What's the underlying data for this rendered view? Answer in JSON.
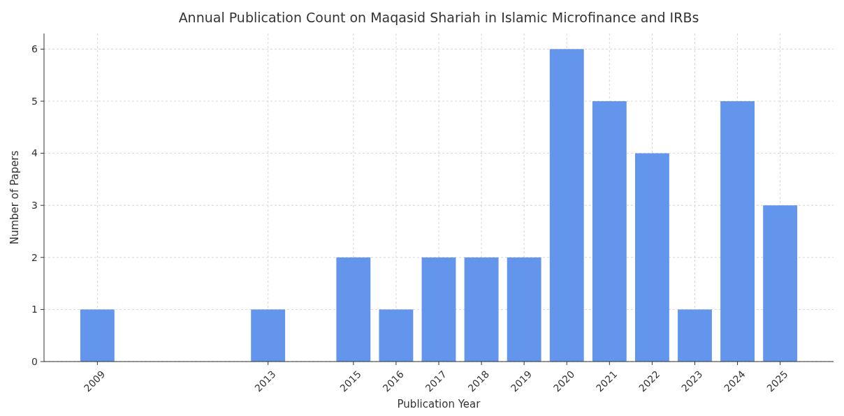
{
  "chart_data": {
    "type": "bar",
    "title": "Annual Publication Count on Maqasid Shariah in Islamic Microfinance and IRBs",
    "xlabel": "Publication Year",
    "ylabel": "Number of Papers",
    "x": [
      2009,
      2013,
      2015,
      2016,
      2017,
      2018,
      2019,
      2020,
      2021,
      2022,
      2023,
      2024,
      2025
    ],
    "values": [
      1,
      1,
      2,
      1,
      2,
      2,
      2,
      6,
      5,
      4,
      1,
      5,
      3
    ],
    "color": "#6495ed",
    "xlim": [
      2007.75,
      2026.25
    ],
    "xticks": [
      2009,
      2013,
      2015,
      2016,
      2017,
      2018,
      2019,
      2020,
      2021,
      2022,
      2023,
      2024,
      2025
    ],
    "ylim": [
      0,
      6.3
    ],
    "yticks": [
      0,
      1,
      2,
      3,
      4,
      5,
      6
    ],
    "grid": true
  }
}
